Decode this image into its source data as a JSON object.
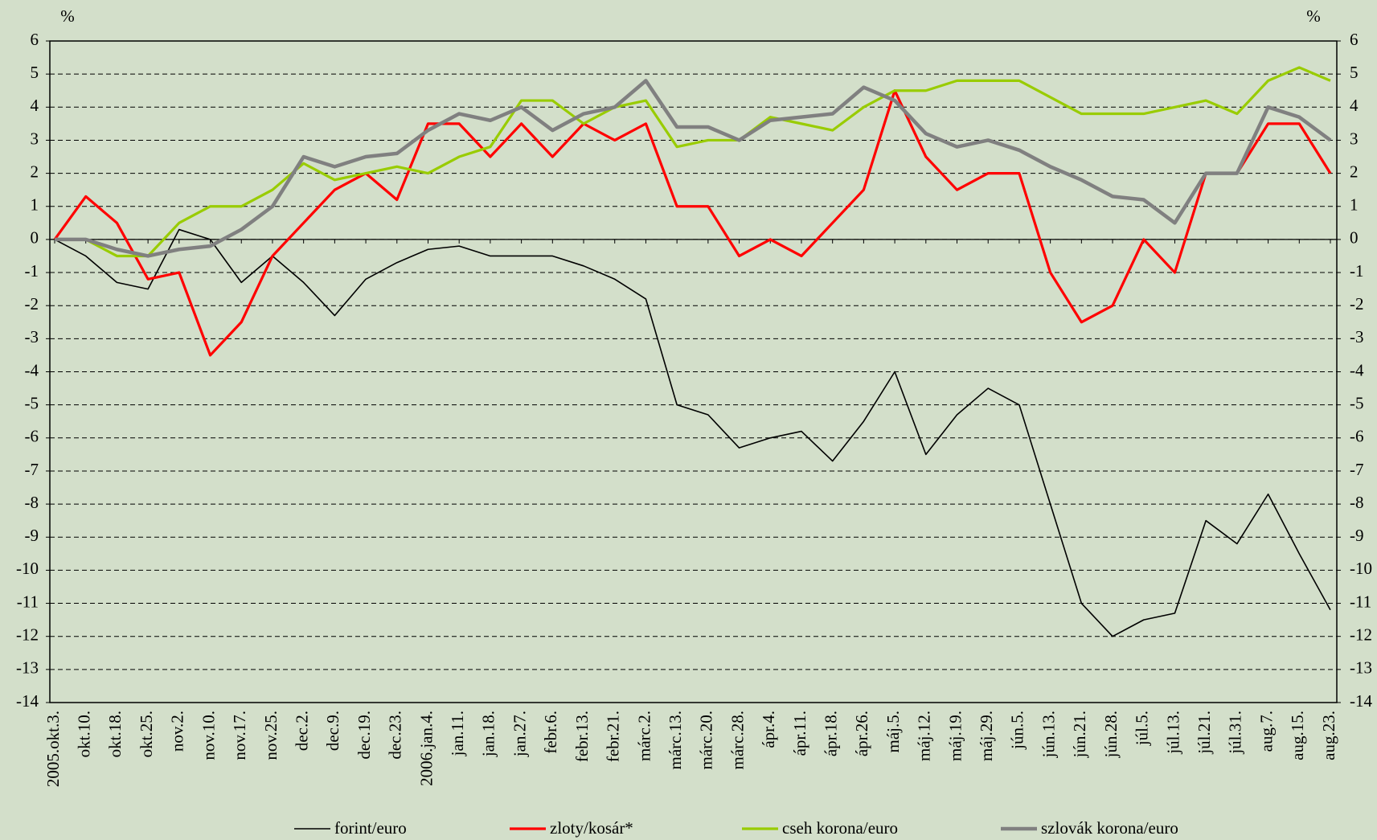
{
  "chart_data": {
    "type": "line",
    "y_label": "%",
    "y2_label": "%",
    "categories": [
      "2005.okt.3.",
      "okt.10.",
      "okt.18.",
      "okt.25.",
      "nov.2.",
      "nov.10.",
      "nov.17.",
      "nov.25.",
      "dec.2.",
      "dec.9.",
      "dec.19.",
      "dec.23.",
      "2006.jan.4.",
      "jan.11.",
      "jan.18.",
      "jan.27.",
      "febr.6.",
      "febr.13.",
      "febr.21.",
      "márc.2.",
      "márc.13.",
      "márc.20.",
      "márc.28.",
      "ápr.4.",
      "ápr.11.",
      "ápr.18.",
      "ápr.26.",
      "máj.5.",
      "máj.12.",
      "máj.19.",
      "máj.29.",
      "jún.5.",
      "jún.13.",
      "jún.21.",
      "jún.28.",
      "júl.5.",
      "júl.13.",
      "júl.21.",
      "júl.31.",
      "aug.7.",
      "aug.15.",
      "aug.23."
    ],
    "series": [
      {
        "name": "forint/euro",
        "color": "#000000",
        "values": [
          0,
          -0.5,
          -1.3,
          -1.5,
          0.3,
          0,
          -1.3,
          -0.5,
          -1.3,
          -2.3,
          -1.2,
          -0.7,
          -0.3,
          -0.2,
          -0.5,
          -0.5,
          -0.5,
          -0.8,
          -1.2,
          -1.8,
          -5,
          -5.3,
          -6.3,
          -6,
          -5.8,
          -6.7,
          -5.5,
          -4,
          -6.5,
          -5.3,
          -4.5,
          -5,
          -8,
          -11,
          -12,
          -11.5,
          -11.3,
          -8.5,
          -9.2,
          -7.7,
          -9.5,
          -11.2
        ]
      },
      {
        "name": "zloty/kosár*",
        "color": "#ff0000",
        "values": [
          0,
          1.3,
          0.5,
          -1.2,
          -1,
          -3.5,
          -2.5,
          -0.5,
          0.5,
          1.5,
          2,
          1.2,
          3.5,
          3.5,
          2.5,
          3.5,
          2.5,
          3.5,
          3,
          3.5,
          1,
          1,
          -0.5,
          0,
          -0.5,
          0.5,
          1.5,
          4.5,
          2.5,
          1.5,
          2,
          2,
          -1,
          -2.5,
          -2,
          0,
          -1,
          2,
          2,
          3.5,
          3.5,
          2
        ]
      },
      {
        "name": "cseh korona/euro",
        "color": "#99cc00",
        "values": [
          0,
          0,
          -0.5,
          -0.5,
          0.5,
          1,
          1,
          1.5,
          2.3,
          1.8,
          2,
          2.2,
          2,
          2.5,
          2.8,
          4.2,
          4.2,
          3.5,
          4,
          4.2,
          2.8,
          3,
          3,
          3.7,
          3.5,
          3.3,
          4,
          4.5,
          4.5,
          4.8,
          4.8,
          4.8,
          4.3,
          3.8,
          3.8,
          3.8,
          4,
          4.2,
          3.8,
          4.8,
          5.2,
          4.8
        ]
      },
      {
        "name": "szlovák korona/euro",
        "color": "#808080",
        "values": [
          0,
          0,
          -0.3,
          -0.5,
          -0.3,
          -0.2,
          0.3,
          1,
          2.5,
          2.2,
          2.5,
          2.6,
          3.3,
          3.8,
          3.6,
          4,
          3.3,
          3.8,
          4,
          4.8,
          3.4,
          3.4,
          3,
          3.6,
          3.7,
          3.8,
          4.6,
          4.2,
          3.2,
          2.8,
          3,
          2.7,
          2.2,
          1.8,
          1.3,
          1.2,
          0.5,
          2,
          2,
          4,
          3.7,
          3
        ]
      }
    ],
    "ylim": [
      -14,
      6
    ],
    "yticks": [
      -14,
      -13,
      -12,
      -11,
      -10,
      -9,
      -8,
      -7,
      -6,
      -5,
      -4,
      -3,
      -2,
      -1,
      0,
      1,
      2,
      3,
      4,
      5,
      6
    ],
    "y2lim": [
      -14,
      6
    ],
    "y2ticks": [
      -14,
      -13,
      -12,
      -11,
      -10,
      -9,
      -8,
      -7,
      -6,
      -5,
      -4,
      -3,
      -2,
      -1,
      0,
      1,
      2,
      3,
      4,
      5,
      6
    ],
    "grid": true
  }
}
